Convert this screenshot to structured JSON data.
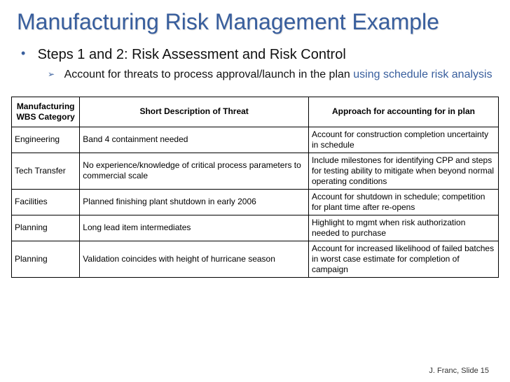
{
  "title": "Manufacturing Risk Management Example",
  "bullet1": "Steps 1 and 2: Risk Assessment and Risk Control",
  "sub1_plain": "Account for threats to process approval/launch in the plan ",
  "sub1_link": "using schedule risk analysis",
  "table": {
    "headers": {
      "c1": "Manufacturing WBS Category",
      "c2": "Short Description of Threat",
      "c3": "Approach for accounting for in plan"
    },
    "rows": [
      {
        "c1": "Engineering",
        "c2": "Band 4 containment needed",
        "c3": "Account for construction completion uncertainty in schedule"
      },
      {
        "c1": "Tech Transfer",
        "c2": "No experience/knowledge of critical process parameters to commercial scale",
        "c3": "Include milestones for identifying CPP and steps for testing ability to mitigate when beyond normal operating conditions"
      },
      {
        "c1": "Facilities",
        "c2": "Planned finishing plant shutdown in early 2006",
        "c3": "Account for shutdown in schedule; competition for plant time after re-opens"
      },
      {
        "c1": "Planning",
        "c2": "Long lead item intermediates",
        "c3": "Highlight to mgmt when risk authorization needed to purchase"
      },
      {
        "c1": "Planning",
        "c2": "Validation coincides with height of hurricane season",
        "c3": "Account for increased likelihood of failed batches in worst case estimate for completion of campaign"
      }
    ]
  },
  "footer": "J. Franc, Slide 15"
}
